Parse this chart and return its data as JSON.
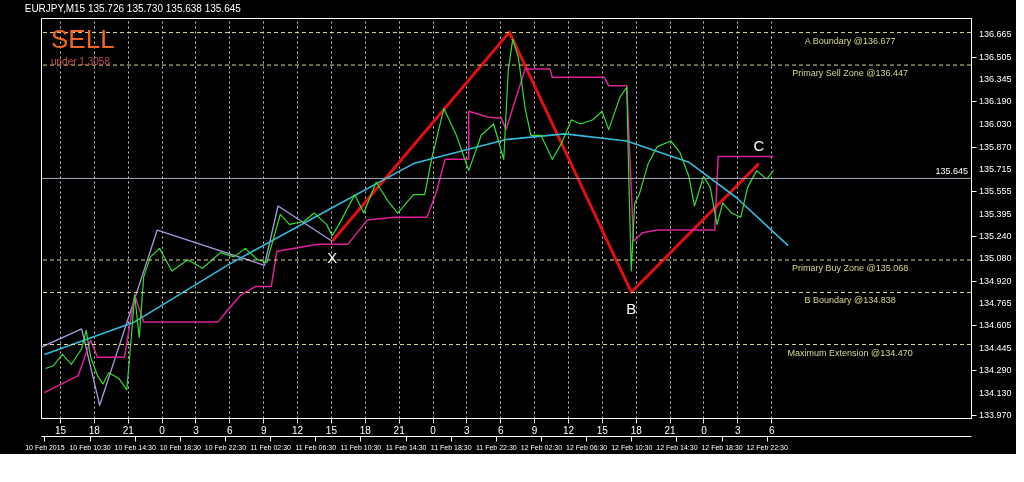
{
  "chart_data": {
    "type": "line",
    "title": "EURJPY,M15 135.726 135.730 135.638 135.645",
    "annotations": [
      "SELL",
      "under 1.3058",
      {
        "text": "X",
        "x": "2015-02-11T08:00",
        "y": 135.2
      },
      {
        "text": "B",
        "x": "2015-02-12T10:30",
        "y": 134.84
      },
      {
        "text": "C",
        "x": "2015-02-12T21:48",
        "y": 135.75
      }
    ],
    "xlim": [
      "2015-02-10T06:12",
      "2015-02-13T16:36"
    ],
    "ylim": [
      133.95,
      136.78
    ],
    "xticks": [
      {
        "value": "2015-02-10T06:30",
        "label": "10 Feb 2015"
      },
      {
        "value": "2015-02-10T10:30",
        "label": "10 Feb 10:30"
      },
      {
        "value": "2015-02-10T14:30",
        "label": "10 Feb 14:30"
      },
      {
        "value": "2015-02-10T18:30",
        "label": "10 Feb 18:30"
      },
      {
        "value": "2015-02-10T22:30",
        "label": "10 Feb 22:30"
      },
      {
        "value": "2015-02-11T02:30",
        "label": "11 Feb 02:30"
      },
      {
        "value": "2015-02-11T06:30",
        "label": "11 Feb 06:30"
      },
      {
        "value": "2015-02-11T10:30",
        "label": "11 Feb 10:30"
      },
      {
        "value": "2015-02-11T14:30",
        "label": "11 Feb 14:30"
      },
      {
        "value": "2015-02-11T18:30",
        "label": "11 Feb 18:30"
      },
      {
        "value": "2015-02-11T22:30",
        "label": "11 Feb 22:30"
      },
      {
        "value": "2015-02-12T02:30",
        "label": "12 Feb 02:30"
      },
      {
        "value": "2015-02-12T06:30",
        "label": "12 Feb 06:30"
      },
      {
        "value": "2015-02-12T10:30",
        "label": "12 Feb 10:30"
      },
      {
        "value": "2015-02-12T14:30",
        "label": "12 Feb 14:30"
      },
      {
        "value": "2015-02-12T18:30",
        "label": "12 Feb 18:30"
      },
      {
        "value": "2015-02-12T22:30",
        "label": "12 Feb 22:30"
      }
    ],
    "x2lim": [
      "2015-02-10T13:19",
      "2015-02-13T23:42"
    ],
    "x2ticks": [
      {
        "value": "2015-02-10T15:00",
        "label": "15"
      },
      {
        "value": "2015-02-10T18:00",
        "label": "18"
      },
      {
        "value": "2015-02-10T21:00",
        "label": "21"
      },
      {
        "value": "2015-02-11T00:00",
        "label": "0"
      },
      {
        "value": "2015-02-11T03:00",
        "label": "3"
      },
      {
        "value": "2015-02-11T06:00",
        "label": "6"
      },
      {
        "value": "2015-02-11T09:00",
        "label": "9"
      },
      {
        "value": "2015-02-11T12:00",
        "label": "12"
      },
      {
        "value": "2015-02-11T15:00",
        "label": "15"
      },
      {
        "value": "2015-02-11T18:00",
        "label": "18"
      },
      {
        "value": "2015-02-11T21:00",
        "label": "21"
      },
      {
        "value": "2015-02-12T00:00",
        "label": "0"
      },
      {
        "value": "2015-02-12T03:00",
        "label": "3"
      },
      {
        "value": "2015-02-12T06:00",
        "label": "6"
      },
      {
        "value": "2015-02-12T09:00",
        "label": "9"
      },
      {
        "value": "2015-02-12T12:00",
        "label": "12"
      },
      {
        "value": "2015-02-12T15:00",
        "label": "15"
      },
      {
        "value": "2015-02-12T18:00",
        "label": "18"
      },
      {
        "value": "2015-02-12T21:00",
        "label": "21"
      },
      {
        "value": "2015-02-13T00:00",
        "label": "0"
      },
      {
        "value": "2015-02-13T03:00",
        "label": "3"
      },
      {
        "value": "2015-02-13T06:00",
        "label": "6"
      }
    ],
    "yticks": [
      {
        "value": 133.97,
        "label": "133.970"
      },
      {
        "value": 134.13,
        "label": "134.130"
      },
      {
        "value": 134.29,
        "label": "134.290"
      },
      {
        "value": 134.445,
        "label": "134.445"
      },
      {
        "value": 134.605,
        "label": "134.605"
      },
      {
        "value": 134.765,
        "label": "134.765"
      },
      {
        "value": 134.92,
        "label": "134.920"
      },
      {
        "value": 135.08,
        "label": "135.080"
      },
      {
        "value": 135.24,
        "label": "135.240"
      },
      {
        "value": 135.395,
        "label": "135.395"
      },
      {
        "value": 135.555,
        "label": "135.555"
      },
      {
        "value": 135.715,
        "label": "135.715"
      },
      {
        "value": 135.87,
        "label": "135.870"
      },
      {
        "value": 136.03,
        "label": "136.030"
      },
      {
        "value": 136.19,
        "label": "136.190"
      },
      {
        "value": 136.345,
        "label": "136.345"
      },
      {
        "value": 136.505,
        "label": "136.505"
      },
      {
        "value": 136.665,
        "label": "136.665"
      }
    ],
    "grid": "x",
    "marker": "none",
    "line_style": "solid",
    "series": [
      {
        "color": "#33dd33",
        "x": [
          "2015-02-10T06:36",
          "2015-02-10T07:18",
          "2015-02-10T08:06",
          "2015-02-10T08:54",
          "2015-02-10T09:48",
          "2015-02-10T10:12",
          "2015-02-10T10:36",
          "2015-02-10T11:12",
          "2015-02-10T11:42",
          "2015-02-10T12:12",
          "2015-02-10T13:06",
          "2015-02-10T13:48",
          "2015-02-10T14:12",
          "2015-02-10T14:30",
          "2015-02-10T14:54",
          "2015-02-10T15:18",
          "2015-02-10T15:54",
          "2015-02-10T16:42",
          "2015-02-10T17:48",
          "2015-02-10T19:12",
          "2015-02-10T20:30",
          "2015-02-10T22:06",
          "2015-02-10T23:18",
          "2015-02-11T00:18",
          "2015-02-11T01:24",
          "2015-02-11T02:12",
          "2015-02-11T03:24",
          "2015-02-11T04:12",
          "2015-02-11T05:30",
          "2015-02-11T06:24",
          "2015-02-11T07:30",
          "2015-02-11T08:00",
          "2015-02-11T08:36",
          "2015-02-11T10:00",
          "2015-02-11T10:48",
          "2015-02-11T11:54",
          "2015-02-11T12:54",
          "2015-02-11T13:48",
          "2015-02-11T15:12",
          "2015-02-11T16:12",
          "2015-02-11T16:48",
          "2015-02-11T17:54",
          "2015-02-11T19:00",
          "2015-02-11T20:06",
          "2015-02-11T21:12",
          "2015-02-11T22:18",
          "2015-02-11T23:12",
          "2015-02-11T23:36",
          "2015-02-12T00:00",
          "2015-02-12T00:30",
          "2015-02-12T01:06",
          "2015-02-12T01:36",
          "2015-02-12T02:30",
          "2015-02-12T03:30",
          "2015-02-12T04:18",
          "2015-02-12T05:12",
          "2015-02-12T06:00",
          "2015-02-12T07:06",
          "2015-02-12T07:54",
          "2015-02-12T08:30",
          "2015-02-12T09:30",
          "2015-02-12T10:06",
          "2015-02-12T10:18",
          "2015-02-12T10:30",
          "2015-02-12T10:48",
          "2015-02-12T11:12",
          "2015-02-12T12:00",
          "2015-02-12T12:48",
          "2015-02-12T14:00",
          "2015-02-12T14:48",
          "2015-02-12T15:36",
          "2015-02-12T16:06",
          "2015-02-12T16:54",
          "2015-02-12T17:30",
          "2015-02-12T18:06",
          "2015-02-12T18:36",
          "2015-02-12T19:24",
          "2015-02-12T20:12",
          "2015-02-12T20:48",
          "2015-02-12T21:36",
          "2015-02-12T22:30",
          "2015-02-12T23:06"
        ],
        "values": [
          134.3,
          134.32,
          134.4,
          134.33,
          134.44,
          134.57,
          134.38,
          134.25,
          134.19,
          134.27,
          134.23,
          134.15,
          134.52,
          134.82,
          134.52,
          134.95,
          135.09,
          135.15,
          134.99,
          135.07,
          135.01,
          135.12,
          135.09,
          135.15,
          135.07,
          135.05,
          135.39,
          135.32,
          135.34,
          135.4,
          135.32,
          135.24,
          135.32,
          135.53,
          135.4,
          135.62,
          135.49,
          135.4,
          135.53,
          135.53,
          135.78,
          136.14,
          135.95,
          135.7,
          135.95,
          136.03,
          135.78,
          136.41,
          136.63,
          136.5,
          136.14,
          135.95,
          135.95,
          135.78,
          135.89,
          136.06,
          136.03,
          136.06,
          136.12,
          135.99,
          136.22,
          136.29,
          135.58,
          134.99,
          135.47,
          135.53,
          135.75,
          135.87,
          135.91,
          135.83,
          135.66,
          135.45,
          135.66,
          135.58,
          135.32,
          135.47,
          135.4,
          135.37,
          135.58,
          135.7,
          135.64,
          135.7
        ]
      },
      {
        "color": "#33bbdd",
        "x": [
          "2015-02-10T06:30",
          "2015-02-10T14:30",
          "2015-02-10T22:42",
          "2015-02-11T06:54",
          "2015-02-11T15:12",
          "2015-02-11T23:24",
          "2015-02-12T04:36",
          "2015-02-12T10:06",
          "2015-02-12T15:36",
          "2015-02-12T19:48",
          "2015-02-13T00:24"
        ],
        "values": [
          134.4,
          134.63,
          135.03,
          135.39,
          135.75,
          135.92,
          135.96,
          135.91,
          135.76,
          135.51,
          135.17
        ]
      },
      {
        "color": "#dd2299",
        "x": [
          "2015-02-10T06:30",
          "2015-02-10T09:30",
          "2015-02-10T10:36",
          "2015-02-10T11:12",
          "2015-02-10T13:36",
          "2015-02-10T14:30",
          "2015-02-10T15:18",
          "2015-02-10T21:54",
          "2015-02-10T22:42",
          "2015-02-10T23:54",
          "2015-02-11T01:12",
          "2015-02-11T02:36",
          "2015-02-11T03:06",
          "2015-02-11T06:06",
          "2015-02-11T06:54",
          "2015-02-11T09:24",
          "2015-02-11T11:06",
          "2015-02-11T13:30",
          "2015-02-11T16:24",
          "2015-02-11T17:12",
          "2015-02-11T18:00",
          "2015-02-11T20:06",
          "2015-02-11T20:06",
          "2015-02-11T21:48",
          "2015-02-11T23:00",
          "2015-02-11T23:24",
          "2015-02-12T01:06",
          "2015-02-12T03:18",
          "2015-02-12T03:30",
          "2015-02-12T08:06",
          "2015-02-12T08:30",
          "2015-02-12T10:06",
          "2015-02-12T10:42",
          "2015-02-12T11:30",
          "2015-02-12T12:48",
          "2015-02-12T17:54",
          "2015-02-12T18:12",
          "2015-02-12T23:06"
        ],
        "values": [
          134.13,
          134.25,
          134.5,
          134.38,
          134.38,
          134.82,
          134.63,
          134.63,
          134.71,
          134.82,
          134.88,
          134.88,
          135.13,
          135.17,
          135.18,
          135.18,
          135.35,
          135.37,
          135.37,
          135.54,
          135.78,
          135.78,
          136.12,
          136.08,
          136.07,
          135.99,
          136.42,
          136.42,
          136.36,
          136.36,
          136.3,
          136.3,
          135.2,
          135.26,
          135.28,
          135.28,
          135.8,
          135.8
        ]
      },
      {
        "color": "#a999e0",
        "x": [
          "2015-02-10T06:12",
          "2015-02-10T09:48",
          "2015-02-10T11:24",
          "2015-02-10T16:30",
          "2015-02-11T02:00",
          "2015-02-11T03:12",
          "2015-02-11T08:00"
        ],
        "values": [
          134.45,
          134.58,
          134.04,
          135.28,
          135.03,
          135.45,
          135.2
        ]
      },
      {
        "color": "#e01010",
        "x": [
          "2015-02-11T08:00",
          "2015-02-11T23:42",
          "2015-02-12T10:30",
          "2015-02-12T21:48"
        ],
        "values": [
          135.2,
          136.68,
          134.84,
          135.75
        ]
      }
    ],
    "ref_lines": [
      {
        "axis": "y",
        "value": 136.677,
        "label": "A Boundary @136.677",
        "color": "#d8d890",
        "line_style": "dashed"
      },
      {
        "axis": "y",
        "value": 136.447,
        "label": "Primary Sell Zone @136.447",
        "color": "#d8d890",
        "line_style": "dashed"
      },
      {
        "axis": "y",
        "value": 135.068,
        "label": "Primary Buy Zone @135.068",
        "color": "#d8d890",
        "line_style": "dashed"
      },
      {
        "axis": "y",
        "value": 134.838,
        "label": "B Boundary @134.838",
        "color": "#d8d890",
        "line_style": "dashed"
      },
      {
        "axis": "y",
        "value": 134.47,
        "label": "Maximum Extension @134.470",
        "color": "#d8d890",
        "line_style": "dashed"
      },
      {
        "axis": "y",
        "value": 135.645,
        "label": "135.645",
        "color": "#a0a8b8",
        "line_style": "solid"
      }
    ]
  }
}
